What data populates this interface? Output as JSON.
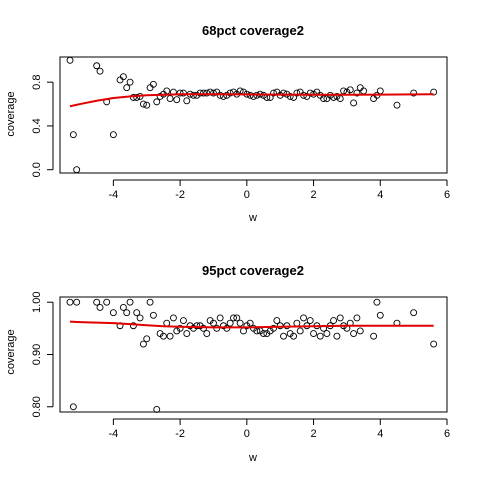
{
  "colors": {
    "points": "#000000",
    "fit": "#e00000",
    "axes": "#000000",
    "background": "#ffffff"
  },
  "chart_data": [
    {
      "type": "scatter",
      "title": "68pct coverage2",
      "xlabel": "w",
      "ylabel": "coverage",
      "xlim": [
        -5.6,
        6.0
      ],
      "ylim": [
        -0.03,
        1.03
      ],
      "xticks": [
        -4,
        -2,
        0,
        2,
        4,
        6
      ],
      "yticks": [
        0.0,
        0.4,
        0.8
      ],
      "ytick_labels": [
        "0.0",
        "0.4",
        "0.8"
      ],
      "series": [
        {
          "points": [
            [
              -5.3,
              1.0
            ],
            [
              -5.2,
              0.32
            ],
            [
              -5.1,
              0.0
            ],
            [
              -4.5,
              0.95
            ],
            [
              -4.4,
              0.9
            ],
            [
              -4.2,
              0.62
            ],
            [
              -4.0,
              0.32
            ],
            [
              -3.8,
              0.82
            ],
            [
              -3.7,
              0.85
            ],
            [
              -3.6,
              0.75
            ],
            [
              -3.5,
              0.8
            ],
            [
              -3.4,
              0.66
            ],
            [
              -3.3,
              0.66
            ],
            [
              -3.2,
              0.67
            ],
            [
              -3.1,
              0.6
            ],
            [
              -3.0,
              0.59
            ],
            [
              -2.9,
              0.75
            ],
            [
              -2.8,
              0.78
            ],
            [
              -2.7,
              0.62
            ],
            [
              -2.6,
              0.67
            ],
            [
              -2.5,
              0.69
            ],
            [
              -2.4,
              0.72
            ],
            [
              -2.3,
              0.65
            ],
            [
              -2.2,
              0.71
            ],
            [
              -2.1,
              0.64
            ],
            [
              -2.0,
              0.7
            ],
            [
              -1.9,
              0.7
            ],
            [
              -1.8,
              0.63
            ],
            [
              -1.7,
              0.69
            ],
            [
              -1.6,
              0.68
            ],
            [
              -1.5,
              0.68
            ],
            [
              -1.4,
              0.7
            ],
            [
              -1.3,
              0.7
            ],
            [
              -1.2,
              0.7
            ],
            [
              -1.1,
              0.71
            ],
            [
              -1.0,
              0.7
            ],
            [
              -0.9,
              0.71
            ],
            [
              -0.8,
              0.68
            ],
            [
              -0.7,
              0.67
            ],
            [
              -0.6,
              0.68
            ],
            [
              -0.5,
              0.7
            ],
            [
              -0.4,
              0.71
            ],
            [
              -0.3,
              0.69
            ],
            [
              -0.2,
              0.72
            ],
            [
              -0.1,
              0.71
            ],
            [
              0.0,
              0.69
            ],
            [
              0.1,
              0.68
            ],
            [
              0.2,
              0.67
            ],
            [
              0.3,
              0.68
            ],
            [
              0.4,
              0.69
            ],
            [
              0.5,
              0.68
            ],
            [
              0.6,
              0.66
            ],
            [
              0.7,
              0.66
            ],
            [
              0.8,
              0.7
            ],
            [
              0.9,
              0.71
            ],
            [
              1.0,
              0.68
            ],
            [
              1.1,
              0.7
            ],
            [
              1.2,
              0.69
            ],
            [
              1.3,
              0.67
            ],
            [
              1.4,
              0.66
            ],
            [
              1.5,
              0.7
            ],
            [
              1.6,
              0.71
            ],
            [
              1.7,
              0.68
            ],
            [
              1.8,
              0.67
            ],
            [
              1.9,
              0.7
            ],
            [
              2.0,
              0.69
            ],
            [
              2.1,
              0.71
            ],
            [
              2.2,
              0.68
            ],
            [
              2.3,
              0.65
            ],
            [
              2.4,
              0.65
            ],
            [
              2.5,
              0.68
            ],
            [
              2.6,
              0.66
            ],
            [
              2.7,
              0.67
            ],
            [
              2.8,
              0.65
            ],
            [
              2.9,
              0.72
            ],
            [
              3.0,
              0.71
            ],
            [
              3.1,
              0.73
            ],
            [
              3.2,
              0.61
            ],
            [
              3.3,
              0.7
            ],
            [
              3.4,
              0.75
            ],
            [
              3.5,
              0.72
            ],
            [
              3.8,
              0.65
            ],
            [
              3.9,
              0.68
            ],
            [
              4.0,
              0.72
            ],
            [
              4.5,
              0.59
            ],
            [
              5.0,
              0.7
            ],
            [
              5.6,
              0.71
            ]
          ],
          "fit": [
            [
              -5.3,
              0.58
            ],
            [
              -5.0,
              0.6
            ],
            [
              -4.5,
              0.63
            ],
            [
              -4.0,
              0.655
            ],
            [
              -3.5,
              0.67
            ],
            [
              -3.0,
              0.68
            ],
            [
              -2.5,
              0.685
            ],
            [
              -2.0,
              0.69
            ],
            [
              -1.0,
              0.69
            ],
            [
              0.0,
              0.688
            ],
            [
              1.0,
              0.686
            ],
            [
              2.0,
              0.685
            ],
            [
              3.0,
              0.685
            ],
            [
              4.0,
              0.686
            ],
            [
              5.0,
              0.688
            ],
            [
              5.6,
              0.69
            ]
          ]
        }
      ]
    },
    {
      "type": "scatter",
      "title": "95pct coverage2",
      "xlabel": "w",
      "ylabel": "coverage",
      "xlim": [
        -5.6,
        6.0
      ],
      "ylim": [
        0.79,
        1.01
      ],
      "xticks": [
        -4,
        -2,
        0,
        2,
        4,
        6
      ],
      "yticks": [
        0.8,
        0.9,
        1.0
      ],
      "ytick_labels": [
        "0.80",
        "0.90",
        "1.00"
      ],
      "series": [
        {
          "points": [
            [
              -5.3,
              1.0
            ],
            [
              -5.2,
              0.8
            ],
            [
              -5.1,
              1.0
            ],
            [
              -4.5,
              1.0
            ],
            [
              -4.4,
              0.99
            ],
            [
              -4.2,
              1.0
            ],
            [
              -4.0,
              0.98
            ],
            [
              -3.8,
              0.955
            ],
            [
              -3.7,
              0.99
            ],
            [
              -3.6,
              0.98
            ],
            [
              -3.5,
              1.0
            ],
            [
              -3.4,
              0.955
            ],
            [
              -3.3,
              0.98
            ],
            [
              -3.2,
              0.97
            ],
            [
              -3.1,
              0.92
            ],
            [
              -3.0,
              0.93
            ],
            [
              -2.9,
              1.0
            ],
            [
              -2.8,
              0.975
            ],
            [
              -2.7,
              0.795
            ],
            [
              -2.6,
              0.94
            ],
            [
              -2.5,
              0.935
            ],
            [
              -2.4,
              0.96
            ],
            [
              -2.3,
              0.935
            ],
            [
              -2.2,
              0.97
            ],
            [
              -2.1,
              0.945
            ],
            [
              -2.0,
              0.95
            ],
            [
              -1.9,
              0.965
            ],
            [
              -1.8,
              0.94
            ],
            [
              -1.7,
              0.955
            ],
            [
              -1.6,
              0.95
            ],
            [
              -1.5,
              0.955
            ],
            [
              -1.4,
              0.955
            ],
            [
              -1.3,
              0.95
            ],
            [
              -1.2,
              0.94
            ],
            [
              -1.1,
              0.965
            ],
            [
              -1.0,
              0.96
            ],
            [
              -0.9,
              0.95
            ],
            [
              -0.8,
              0.97
            ],
            [
              -0.7,
              0.955
            ],
            [
              -0.6,
              0.95
            ],
            [
              -0.5,
              0.96
            ],
            [
              -0.4,
              0.97
            ],
            [
              -0.3,
              0.97
            ],
            [
              -0.2,
              0.96
            ],
            [
              -0.1,
              0.945
            ],
            [
              0.0,
              0.955
            ],
            [
              0.1,
              0.96
            ],
            [
              0.2,
              0.95
            ],
            [
              0.3,
              0.945
            ],
            [
              0.4,
              0.945
            ],
            [
              0.5,
              0.94
            ],
            [
              0.6,
              0.94
            ],
            [
              0.7,
              0.945
            ],
            [
              0.8,
              0.95
            ],
            [
              0.9,
              0.965
            ],
            [
              1.0,
              0.955
            ],
            [
              1.1,
              0.935
            ],
            [
              1.2,
              0.955
            ],
            [
              1.3,
              0.94
            ],
            [
              1.4,
              0.935
            ],
            [
              1.5,
              0.96
            ],
            [
              1.6,
              0.945
            ],
            [
              1.7,
              0.97
            ],
            [
              1.8,
              0.955
            ],
            [
              1.9,
              0.965
            ],
            [
              2.0,
              0.94
            ],
            [
              2.1,
              0.955
            ],
            [
              2.2,
              0.935
            ],
            [
              2.3,
              0.95
            ],
            [
              2.4,
              0.94
            ],
            [
              2.5,
              0.955
            ],
            [
              2.6,
              0.965
            ],
            [
              2.7,
              0.935
            ],
            [
              2.8,
              0.97
            ],
            [
              2.9,
              0.955
            ],
            [
              3.0,
              0.95
            ],
            [
              3.1,
              0.96
            ],
            [
              3.2,
              0.94
            ],
            [
              3.3,
              0.97
            ],
            [
              3.4,
              0.945
            ],
            [
              3.8,
              0.935
            ],
            [
              3.9,
              1.0
            ],
            [
              4.0,
              0.975
            ],
            [
              4.5,
              0.96
            ],
            [
              5.0,
              0.98
            ],
            [
              5.6,
              0.92
            ]
          ],
          "fit": [
            [
              -5.3,
              0.963
            ],
            [
              -5.0,
              0.962
            ],
            [
              -4.5,
              0.961
            ],
            [
              -4.0,
              0.96
            ],
            [
              -3.5,
              0.958
            ],
            [
              -3.0,
              0.956
            ],
            [
              -2.5,
              0.954
            ],
            [
              -2.0,
              0.953
            ],
            [
              -1.0,
              0.952
            ],
            [
              0.0,
              0.952
            ],
            [
              1.0,
              0.953
            ],
            [
              2.0,
              0.954
            ],
            [
              3.0,
              0.955
            ],
            [
              4.0,
              0.955
            ],
            [
              5.0,
              0.955
            ],
            [
              5.6,
              0.955
            ]
          ]
        }
      ]
    }
  ]
}
